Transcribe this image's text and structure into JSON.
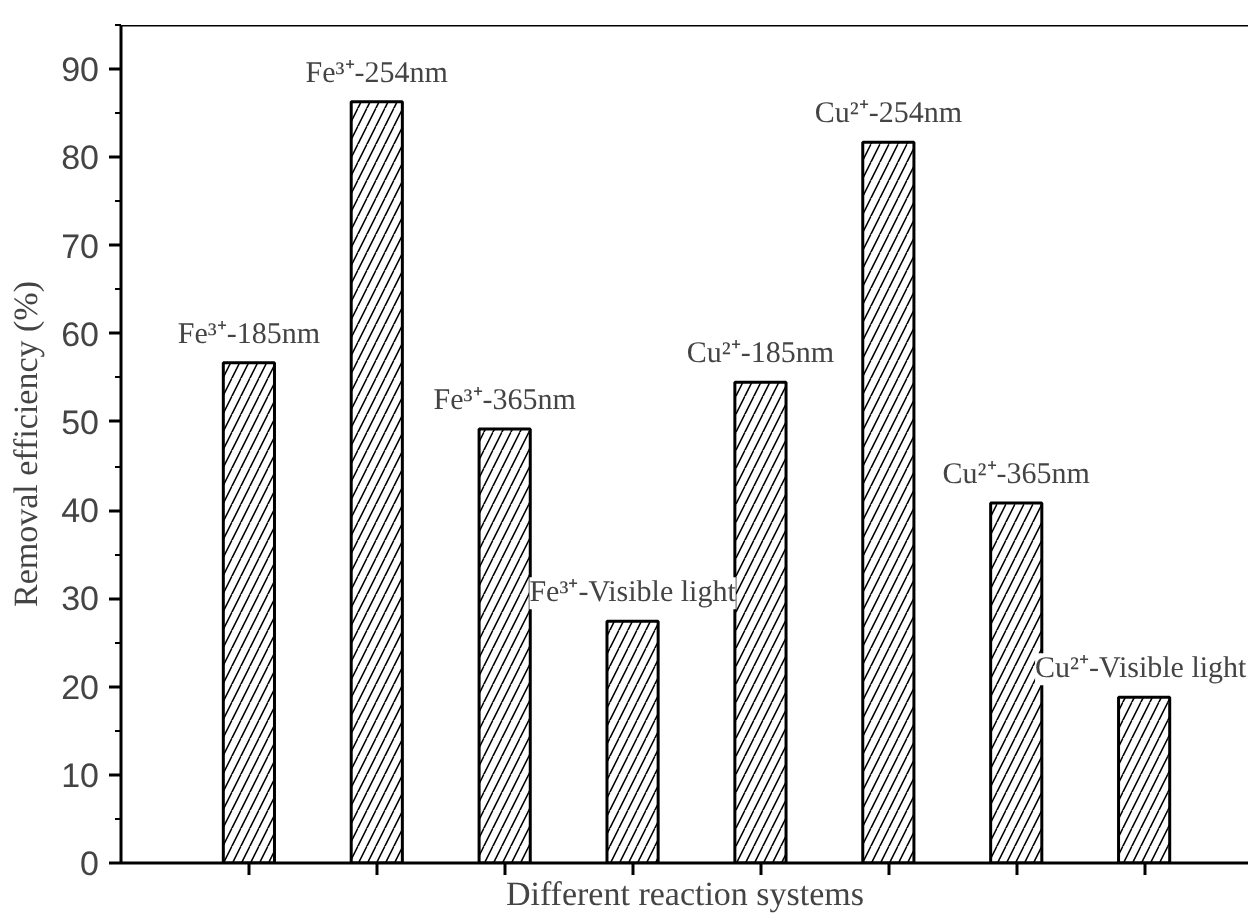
{
  "chart_data": {
    "type": "bar",
    "xlabel": "Different reaction systems",
    "ylabel": "Removal efficiency (%)",
    "categories": [
      null,
      null,
      null,
      null,
      null,
      null,
      null,
      null
    ],
    "values": [
      56.7,
      86.3,
      49.2,
      27.4,
      54.5,
      81.7,
      40.8,
      18.8
    ],
    "color": "#ffffff",
    "ylim": [
      0,
      95
    ],
    "yticks": [
      0,
      10,
      20,
      30,
      40,
      50,
      60,
      70,
      80,
      90
    ],
    "annotations": [
      "Fe³⁺-185nm",
      "Fe³⁺-254nm",
      "Fe³⁺-365nm",
      "Fe³⁺-Visible light",
      "Cu²⁺-185nm",
      "Cu²⁺-254nm",
      "Cu²⁺-365nm",
      "Cu²⁺-Visible light"
    ],
    "grid": false
  }
}
